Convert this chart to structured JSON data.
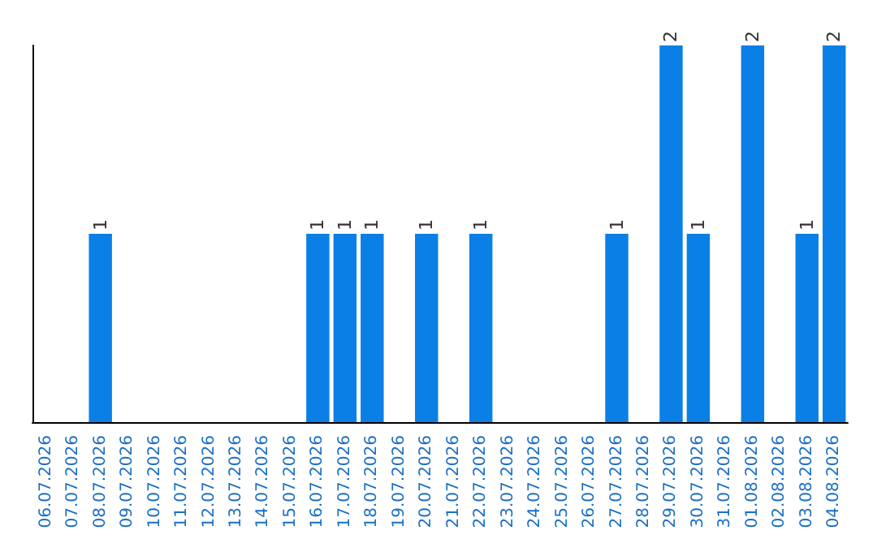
{
  "chart_data": {
    "type": "bar",
    "categories": [
      "06.07.2026",
      "07.07.2026",
      "08.07.2026",
      "09.07.2026",
      "10.07.2026",
      "11.07.2026",
      "12.07.2026",
      "13.07.2026",
      "14.07.2026",
      "15.07.2026",
      "16.07.2026",
      "17.07.2026",
      "18.07.2026",
      "19.07.2026",
      "20.07.2026",
      "21.07.2026",
      "22.07.2026",
      "23.07.2026",
      "24.07.2026",
      "25.07.2026",
      "26.07.2026",
      "27.07.2026",
      "28.07.2026",
      "29.07.2026",
      "30.07.2026",
      "31.07.2026",
      "01.08.2026",
      "02.08.2026",
      "03.08.2026",
      "04.08.2026"
    ],
    "values": [
      0,
      0,
      1,
      0,
      0,
      0,
      0,
      0,
      0,
      0,
      1,
      1,
      1,
      0,
      1,
      0,
      1,
      0,
      0,
      0,
      0,
      1,
      0,
      2,
      1,
      0,
      2,
      0,
      1,
      2
    ],
    "value_labels": [
      null,
      null,
      "1",
      null,
      null,
      null,
      null,
      null,
      null,
      null,
      "1",
      "1",
      "1",
      null,
      "1",
      null,
      "1",
      null,
      null,
      null,
      null,
      "1",
      null,
      "2",
      "1",
      null,
      "2",
      null,
      "1",
      "2"
    ],
    "color": "#0a7fe6",
    "ylim": [
      0,
      2
    ],
    "grid": false,
    "tick_labels": "x"
  }
}
